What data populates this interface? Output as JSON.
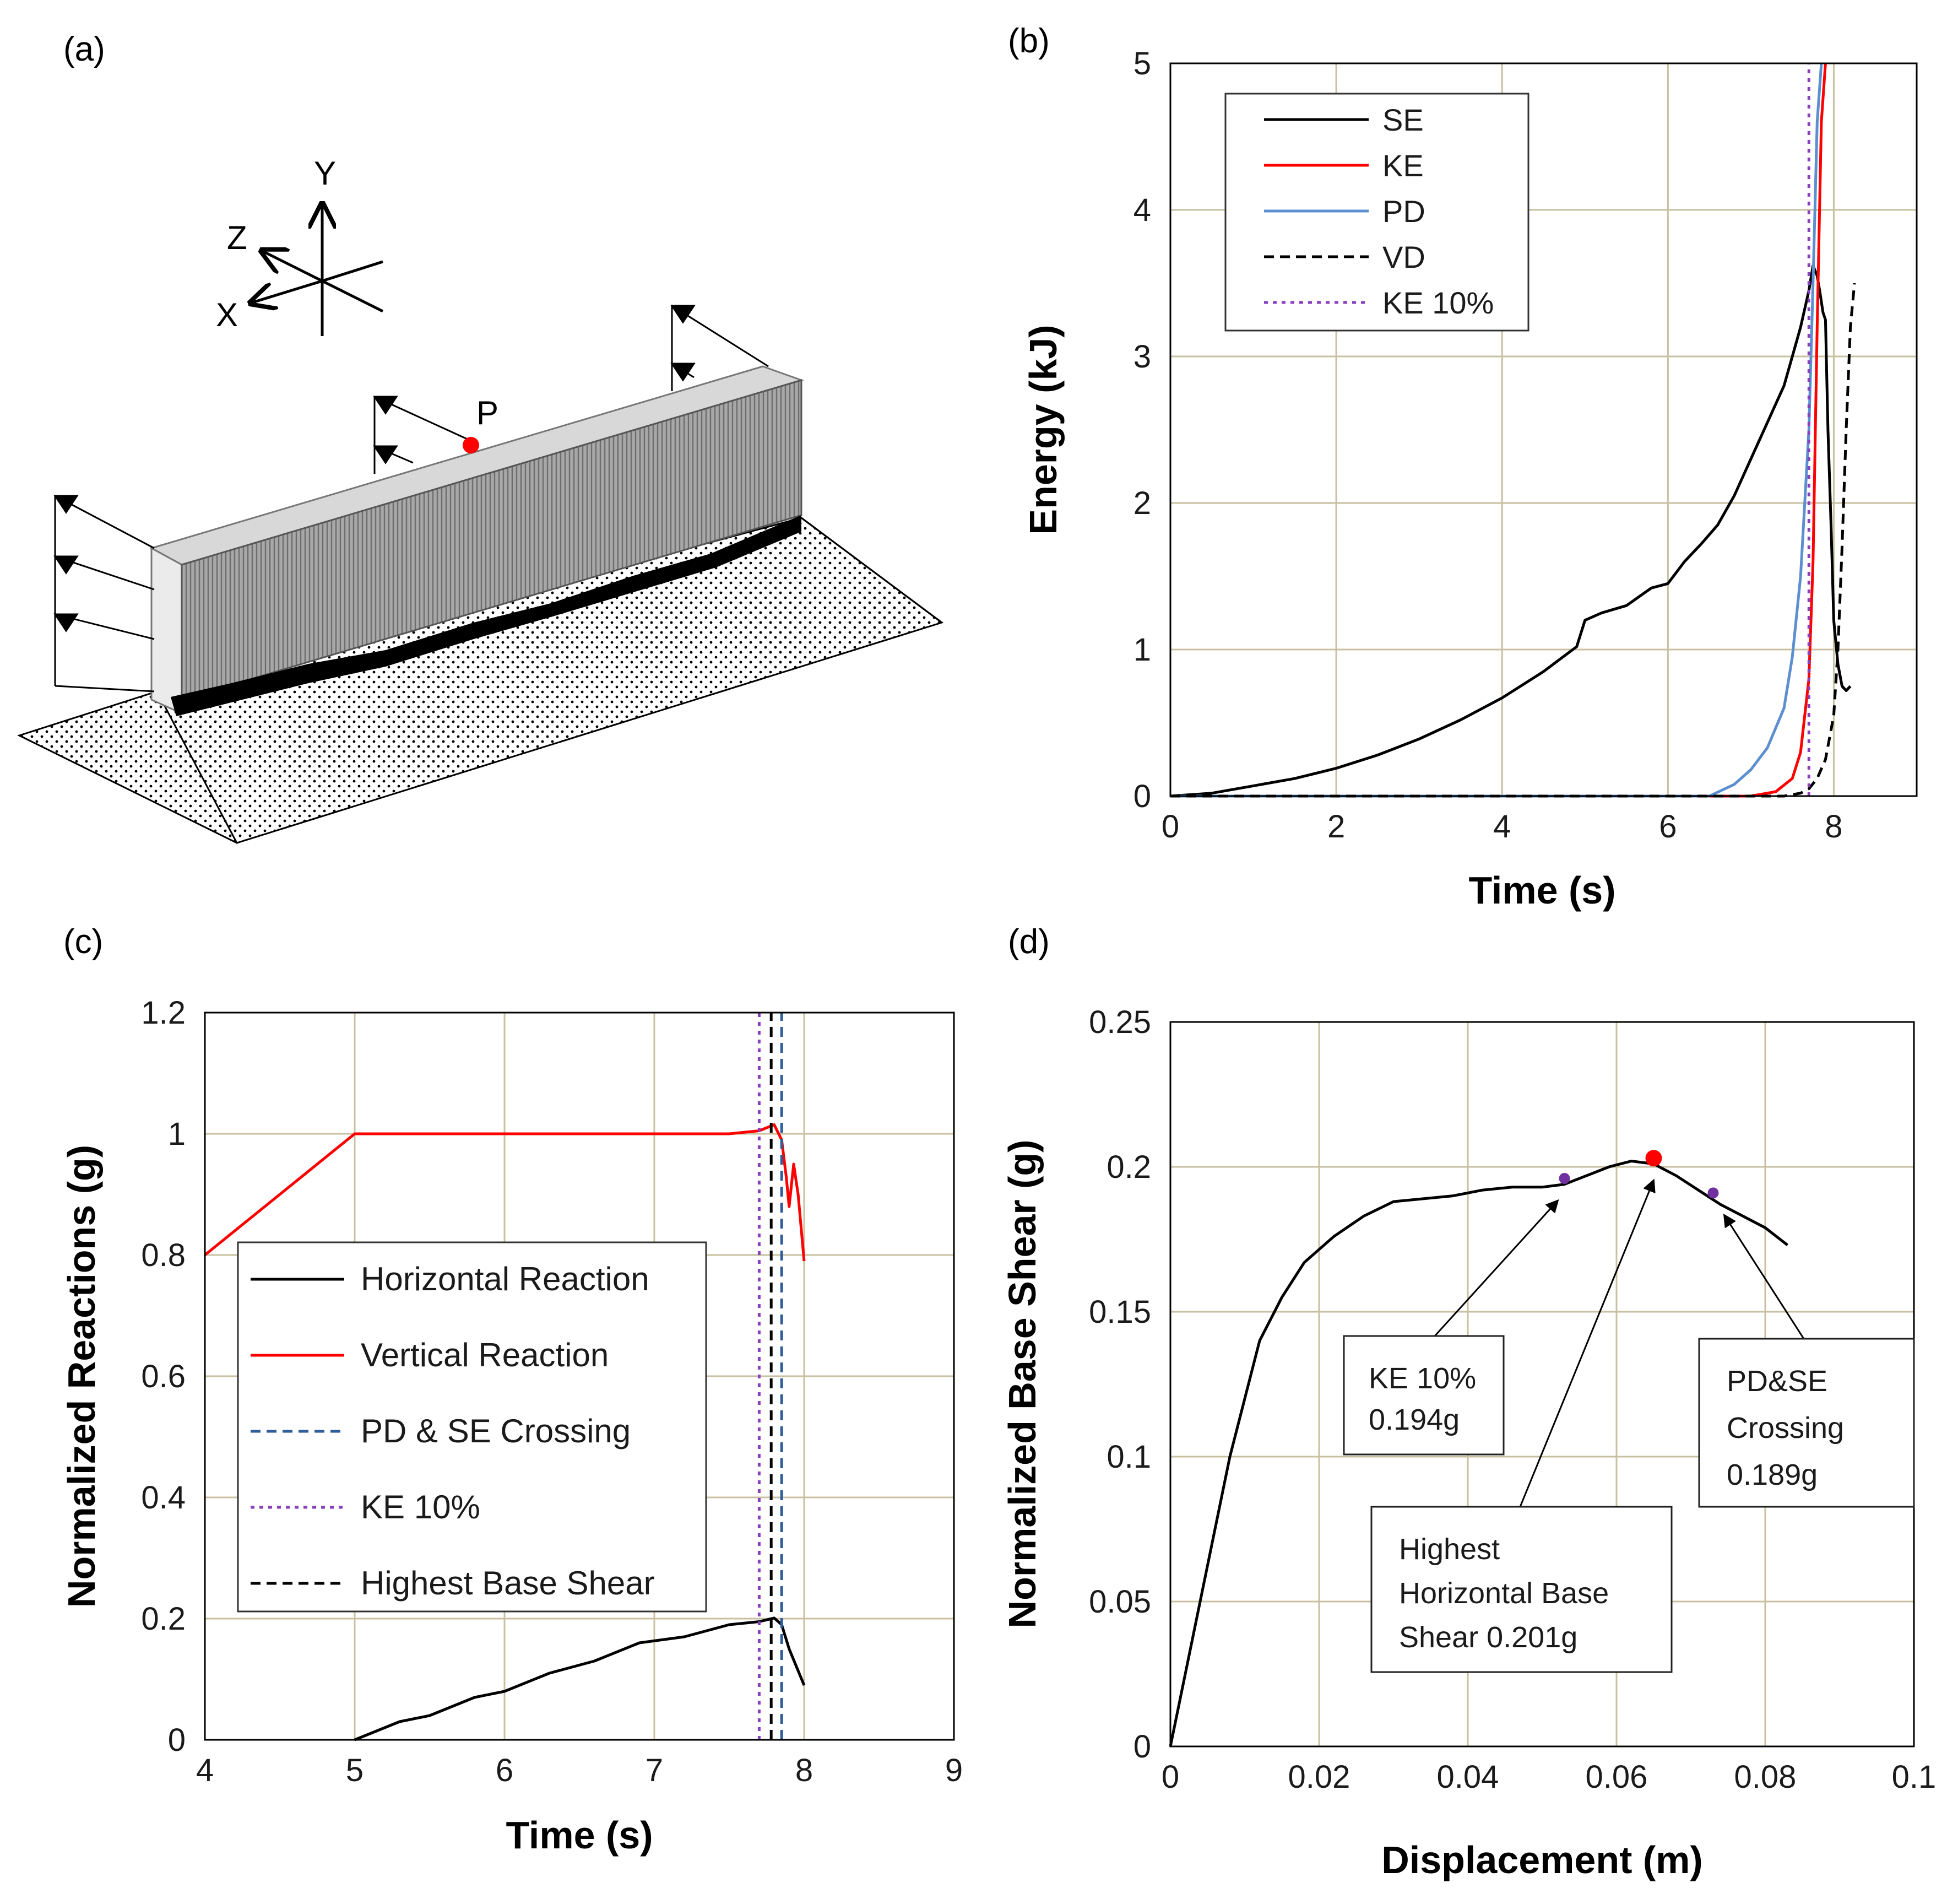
{
  "panels": {
    "a": {
      "letter": "(a)"
    },
    "b": {
      "letter": "(b)"
    },
    "c": {
      "letter": "(c)"
    },
    "d": {
      "letter": "(d)"
    }
  },
  "diagram": {
    "axis_y": "Y",
    "axis_z": "Z",
    "axis_x": "X",
    "point_label": "P",
    "point_color": "#ff0000"
  },
  "chart_data": [
    {
      "id": "b",
      "type": "line",
      "title": "",
      "xlabel": "Time (s)",
      "ylabel": "Energy (kJ)",
      "xlim": [
        0,
        9
      ],
      "ylim": [
        0,
        5
      ],
      "xticks": [
        0,
        2,
        4,
        6,
        8
      ],
      "yticks": [
        0,
        1,
        2,
        3,
        4,
        5
      ],
      "grid": true,
      "legend_position": "top-left",
      "series": [
        {
          "name": "SE",
          "color": "#000000",
          "style": "solid",
          "x": [
            0,
            0.5,
            1,
            1.5,
            2,
            2.5,
            3,
            3.5,
            4,
            4.5,
            4.9,
            5.0,
            5.2,
            5.5,
            5.8,
            6.0,
            6.2,
            6.4,
            6.6,
            6.8,
            7.0,
            7.2,
            7.4,
            7.5,
            7.6,
            7.7,
            7.75,
            7.8,
            7.83,
            7.87,
            7.9,
            7.93,
            7.97,
            8.0,
            8.05,
            8.1,
            8.15,
            8.2
          ],
          "y": [
            0,
            0.02,
            0.07,
            0.12,
            0.19,
            0.28,
            0.39,
            0.52,
            0.67,
            0.85,
            1.02,
            1.2,
            1.25,
            1.3,
            1.42,
            1.45,
            1.6,
            1.72,
            1.85,
            2.05,
            2.3,
            2.55,
            2.8,
            3.0,
            3.2,
            3.45,
            3.62,
            3.55,
            3.45,
            3.3,
            3.25,
            2.5,
            1.8,
            1.2,
            0.9,
            0.75,
            0.72,
            0.75
          ]
        },
        {
          "name": "KE",
          "color": "#ff0000",
          "style": "solid",
          "x": [
            0,
            7.0,
            7.3,
            7.5,
            7.6,
            7.7,
            7.75,
            7.8,
            7.85,
            7.9
          ],
          "y": [
            0,
            0,
            0.03,
            0.12,
            0.3,
            0.8,
            1.6,
            3.2,
            4.6,
            5.0
          ]
        },
        {
          "name": "PD",
          "color": "#5b8fd0",
          "style": "solid",
          "x": [
            0,
            6.5,
            6.8,
            7.0,
            7.2,
            7.4,
            7.5,
            7.6,
            7.7,
            7.75,
            7.8,
            7.85
          ],
          "y": [
            0,
            0,
            0.08,
            0.18,
            0.33,
            0.6,
            0.95,
            1.5,
            2.5,
            3.5,
            4.6,
            5.0
          ]
        },
        {
          "name": "VD",
          "color": "#000000",
          "style": "dashed",
          "x": [
            0,
            7.4,
            7.6,
            7.7,
            7.8,
            7.9,
            8.0,
            8.05,
            8.1,
            8.15,
            8.2,
            8.25
          ],
          "y": [
            0,
            0,
            0.02,
            0.05,
            0.12,
            0.25,
            0.55,
            1.0,
            1.7,
            2.5,
            3.2,
            3.5
          ]
        },
        {
          "name": "KE 10%",
          "color": "#8a3fbf",
          "style": "dotted",
          "x": [
            7.7,
            7.7
          ],
          "y": [
            0,
            5
          ]
        }
      ]
    },
    {
      "id": "c",
      "type": "line",
      "title": "",
      "xlabel": "Time (s)",
      "ylabel": "Normalized Reactions (g)",
      "xlim": [
        4,
        9
      ],
      "ylim": [
        0,
        1.2
      ],
      "xticks": [
        4,
        5,
        6,
        7,
        8,
        9
      ],
      "yticks": [
        0,
        0.2,
        0.4,
        0.6,
        0.8,
        1,
        1.2
      ],
      "ytick_labels": [
        "0",
        "0.2",
        "0.4",
        "0.6",
        "0.8",
        "1",
        "1.2"
      ],
      "grid": true,
      "legend_position": "lower-left",
      "series": [
        {
          "name": "Horizontal Reaction",
          "color": "#000000",
          "style": "solid",
          "x": [
            5.0,
            5.1,
            5.3,
            5.5,
            5.8,
            6.0,
            6.3,
            6.6,
            6.9,
            7.2,
            7.5,
            7.7,
            7.8,
            7.85,
            7.9,
            7.95,
            8.0
          ],
          "y": [
            0,
            0.01,
            0.03,
            0.04,
            0.07,
            0.08,
            0.11,
            0.13,
            0.16,
            0.17,
            0.19,
            0.195,
            0.201,
            0.19,
            0.15,
            0.12,
            0.09
          ]
        },
        {
          "name": "Vertical Reaction",
          "color": "#ff0000",
          "style": "solid",
          "x": [
            4.0,
            5.0,
            5.2,
            6.0,
            7.0,
            7.5,
            7.7,
            7.8,
            7.85,
            7.88,
            7.9,
            7.93,
            7.96,
            8.0
          ],
          "y": [
            0.8,
            1.0,
            1.0,
            1.0,
            1.0,
            1.0,
            1.005,
            1.015,
            0.99,
            0.93,
            0.88,
            0.95,
            0.9,
            0.79
          ]
        },
        {
          "name": "PD & SE Crossing",
          "color": "#2e5e9e",
          "style": "dashed",
          "x": [
            7.85,
            7.85
          ],
          "y": [
            0,
            1.2
          ]
        },
        {
          "name": "KE 10%",
          "color": "#8a3fbf",
          "style": "dotted",
          "x": [
            7.7,
            7.7
          ],
          "y": [
            0,
            1.2
          ]
        },
        {
          "name": "Highest Base Shear",
          "color": "#000000",
          "style": "dashed",
          "x": [
            7.78,
            7.78
          ],
          "y": [
            0,
            1.2
          ]
        }
      ]
    },
    {
      "id": "d",
      "type": "line",
      "title": "",
      "xlabel": "Displacement (m)",
      "ylabel": "Normalized Base Shear (g)",
      "xlim": [
        0,
        0.1
      ],
      "ylim": [
        0,
        0.25
      ],
      "xticks": [
        0,
        0.02,
        0.04,
        0.06,
        0.08,
        0.1
      ],
      "xtick_labels": [
        "0",
        "0.02",
        "0.04",
        "0.06",
        "0.08",
        "0.1"
      ],
      "yticks": [
        0,
        0.05,
        0.1,
        0.15,
        0.2,
        0.25
      ],
      "ytick_labels": [
        "0",
        "0.05",
        "0.1",
        "0.15",
        "0.2",
        "0.25"
      ],
      "grid": true,
      "series": [
        {
          "name": "",
          "color": "#000000",
          "style": "solid",
          "x": [
            0,
            0.002,
            0.004,
            0.006,
            0.008,
            0.01,
            0.012,
            0.015,
            0.018,
            0.022,
            0.026,
            0.03,
            0.034,
            0.038,
            0.042,
            0.046,
            0.05,
            0.053,
            0.056,
            0.059,
            0.062,
            0.065,
            0.068,
            0.071,
            0.074,
            0.077,
            0.08,
            0.083
          ],
          "y": [
            0,
            0.025,
            0.05,
            0.075,
            0.1,
            0.12,
            0.14,
            0.155,
            0.167,
            0.176,
            0.183,
            0.188,
            0.189,
            0.19,
            0.192,
            0.193,
            0.193,
            0.194,
            0.197,
            0.2,
            0.202,
            0.201,
            0.197,
            0.192,
            0.187,
            0.183,
            0.179,
            0.173
          ]
        }
      ],
      "markers": [
        {
          "x": 0.053,
          "y": 0.196,
          "color": "#7030a0",
          "size": "small"
        },
        {
          "x": 0.065,
          "y": 0.203,
          "color": "#ff0000",
          "size": "large"
        },
        {
          "x": 0.073,
          "y": 0.191,
          "color": "#7030a0",
          "size": "small"
        }
      ],
      "annotations": [
        {
          "lines": [
            "KE 10%",
            "0.194g"
          ]
        },
        {
          "lines": [
            "Highest",
            "Horizontal Base",
            "Shear  0.201g"
          ]
        },
        {
          "lines": [
            "PD&SE",
            "Crossing",
            "0.189g"
          ]
        }
      ]
    }
  ]
}
